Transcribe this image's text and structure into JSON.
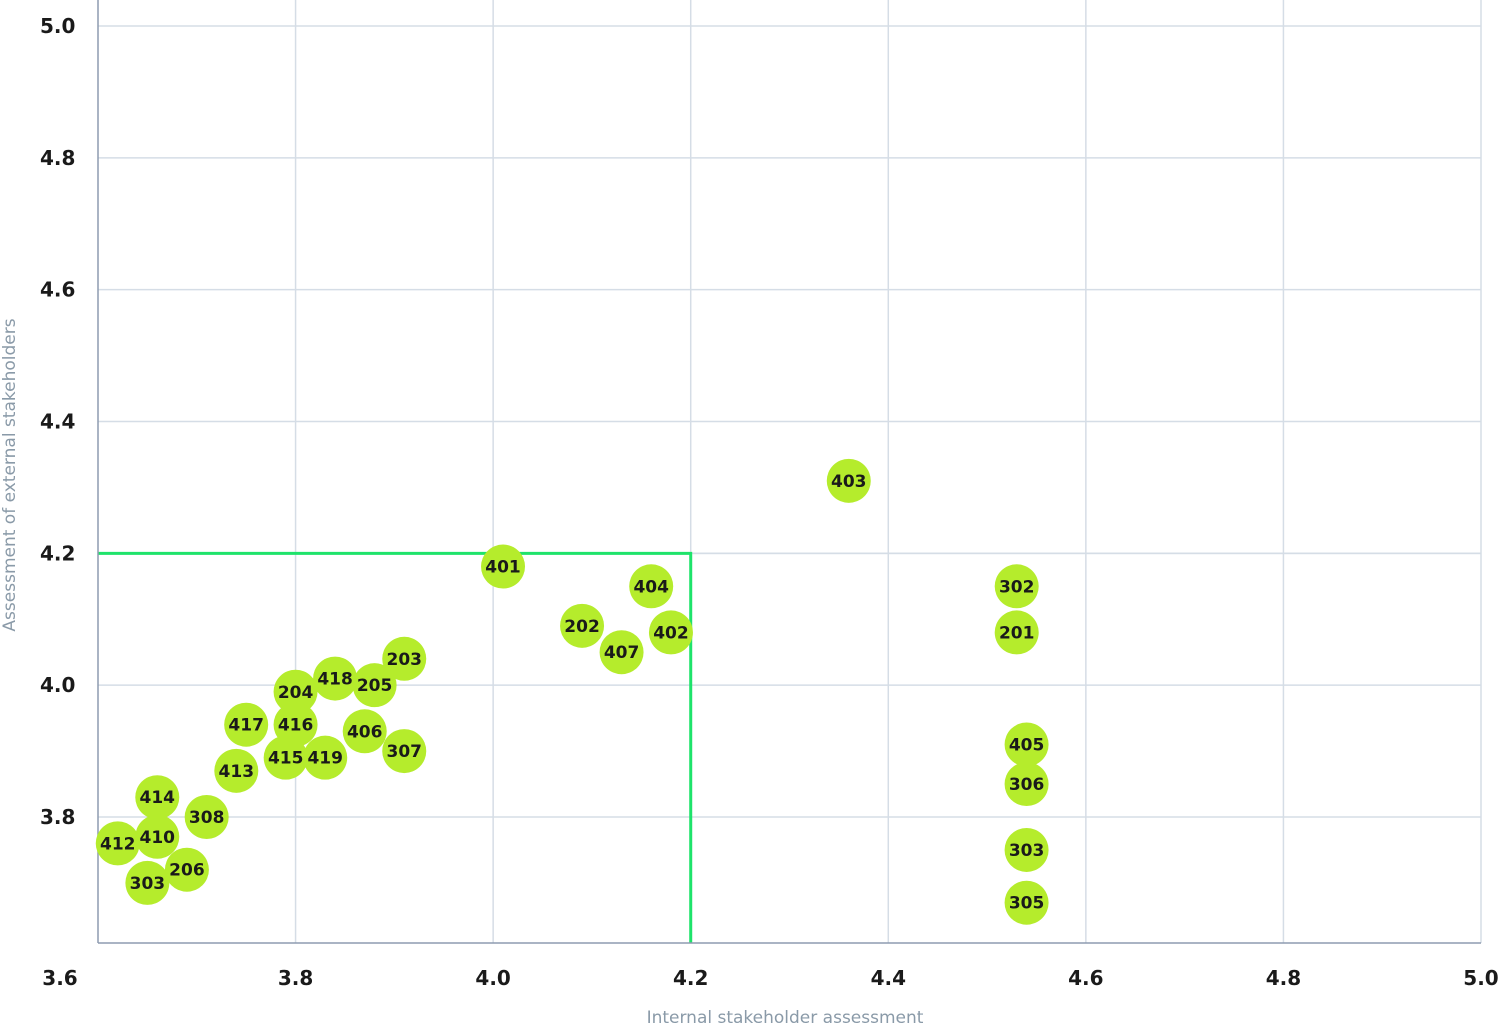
{
  "chart_data": {
    "type": "scatter",
    "xlabel": "Internal stakeholder assessment",
    "ylabel": "Assessment of external stakeholders",
    "xlim": [
      3.6,
      5.0
    ],
    "ylim": [
      3.62,
      5.0
    ],
    "x_ticks": [
      "3.6",
      "3.8",
      "4.0",
      "4.2",
      "4.4",
      "4.6",
      "4.8",
      "5.0"
    ],
    "y_ticks": [
      "3.8",
      "4.0",
      "4.2",
      "4.4",
      "4.6",
      "4.8",
      "5.0"
    ],
    "grid": true,
    "threshold": {
      "x": 4.2,
      "y": 4.2,
      "color": "#1ee36a"
    },
    "point_color": "#b5ec2c",
    "points": [
      {
        "label": "403",
        "x": 4.36,
        "y": 4.31
      },
      {
        "label": "401",
        "x": 4.01,
        "y": 4.18
      },
      {
        "label": "404",
        "x": 4.16,
        "y": 4.15
      },
      {
        "label": "302",
        "x": 4.53,
        "y": 4.15
      },
      {
        "label": "202",
        "x": 4.09,
        "y": 4.09
      },
      {
        "label": "402",
        "x": 4.18,
        "y": 4.08
      },
      {
        "label": "201",
        "x": 4.53,
        "y": 4.08
      },
      {
        "label": "407",
        "x": 4.13,
        "y": 4.05
      },
      {
        "label": "203",
        "x": 3.91,
        "y": 4.04
      },
      {
        "label": "418",
        "x": 3.84,
        "y": 4.01
      },
      {
        "label": "205",
        "x": 3.88,
        "y": 4.0
      },
      {
        "label": "204",
        "x": 3.8,
        "y": 3.99
      },
      {
        "label": "417",
        "x": 3.75,
        "y": 3.94
      },
      {
        "label": "416",
        "x": 3.8,
        "y": 3.94
      },
      {
        "label": "406",
        "x": 3.87,
        "y": 3.93
      },
      {
        "label": "307",
        "x": 3.91,
        "y": 3.9
      },
      {
        "label": "405",
        "x": 4.54,
        "y": 3.91
      },
      {
        "label": "415",
        "x": 3.79,
        "y": 3.89
      },
      {
        "label": "419",
        "x": 3.83,
        "y": 3.89
      },
      {
        "label": "413",
        "x": 3.74,
        "y": 3.87
      },
      {
        "label": "306",
        "x": 4.54,
        "y": 3.85
      },
      {
        "label": "414",
        "x": 3.66,
        "y": 3.83
      },
      {
        "label": "308",
        "x": 3.71,
        "y": 3.8
      },
      {
        "label": "410",
        "x": 3.66,
        "y": 3.77
      },
      {
        "label": "412",
        "x": 3.62,
        "y": 3.76
      },
      {
        "label": "303",
        "x": 4.54,
        "y": 3.75
      },
      {
        "label": "206",
        "x": 3.69,
        "y": 3.72
      },
      {
        "label": "303",
        "x": 3.65,
        "y": 3.7
      },
      {
        "label": "305",
        "x": 4.54,
        "y": 3.67
      }
    ]
  }
}
